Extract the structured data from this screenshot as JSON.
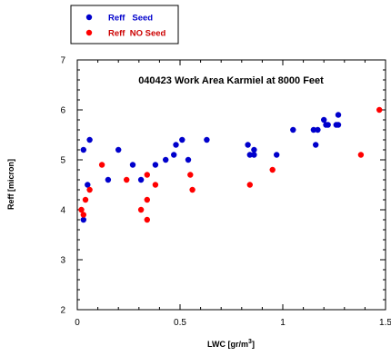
{
  "chart_data": {
    "type": "scatter",
    "title": "040423 Work Area Karmiel at 8000 Feet",
    "xlabel_main": "LWC [gr/m",
    "xlabel_sup": "3",
    "xlabel_end": "]",
    "ylabel": "Reff [micron]",
    "xlim": [
      0,
      1.5
    ],
    "ylim": [
      2,
      7
    ],
    "x_ticks": [
      "0",
      "0.5",
      "1",
      "1.5"
    ],
    "y_ticks": [
      "2",
      "3",
      "4",
      "5",
      "6",
      "7"
    ],
    "x_tick_values": [
      0,
      0.5,
      1,
      1.5
    ],
    "y_tick_values": [
      2,
      3,
      4,
      5,
      6,
      7
    ],
    "grid": false,
    "legend_position": "top-left, outside plot",
    "series": [
      {
        "name": "Reff   Seed",
        "color": "#0000cc",
        "points": [
          [
            0.03,
            5.2
          ],
          [
            0.03,
            3.8
          ],
          [
            0.05,
            4.5
          ],
          [
            0.06,
            5.4
          ],
          [
            0.15,
            4.6
          ],
          [
            0.2,
            5.2
          ],
          [
            0.27,
            4.9
          ],
          [
            0.31,
            4.6
          ],
          [
            0.38,
            4.9
          ],
          [
            0.43,
            5.0
          ],
          [
            0.47,
            5.1
          ],
          [
            0.48,
            5.3
          ],
          [
            0.51,
            5.4
          ],
          [
            0.54,
            5.0
          ],
          [
            0.63,
            5.4
          ],
          [
            0.83,
            5.3
          ],
          [
            0.84,
            5.1
          ],
          [
            0.86,
            5.2
          ],
          [
            0.86,
            5.1
          ],
          [
            0.97,
            5.1
          ],
          [
            1.05,
            5.6
          ],
          [
            1.15,
            5.6
          ],
          [
            1.16,
            5.3
          ],
          [
            1.17,
            5.6
          ],
          [
            1.2,
            5.8
          ],
          [
            1.21,
            5.7
          ],
          [
            1.22,
            5.7
          ],
          [
            1.26,
            5.7
          ],
          [
            1.27,
            5.9
          ],
          [
            1.27,
            5.7
          ]
        ]
      },
      {
        "name": "Reff  NO Seed",
        "color": "#ff0000",
        "points": [
          [
            0.02,
            4.0
          ],
          [
            0.03,
            3.9
          ],
          [
            0.04,
            4.2
          ],
          [
            0.06,
            4.4
          ],
          [
            0.12,
            4.9
          ],
          [
            0.24,
            4.6
          ],
          [
            0.31,
            4.0
          ],
          [
            0.34,
            3.8
          ],
          [
            0.34,
            4.2
          ],
          [
            0.34,
            4.7
          ],
          [
            0.38,
            4.5
          ],
          [
            0.55,
            4.7
          ],
          [
            0.56,
            4.4
          ],
          [
            0.84,
            4.5
          ],
          [
            0.95,
            4.8
          ],
          [
            1.38,
            5.1
          ],
          [
            1.47,
            6.0
          ]
        ]
      }
    ]
  }
}
